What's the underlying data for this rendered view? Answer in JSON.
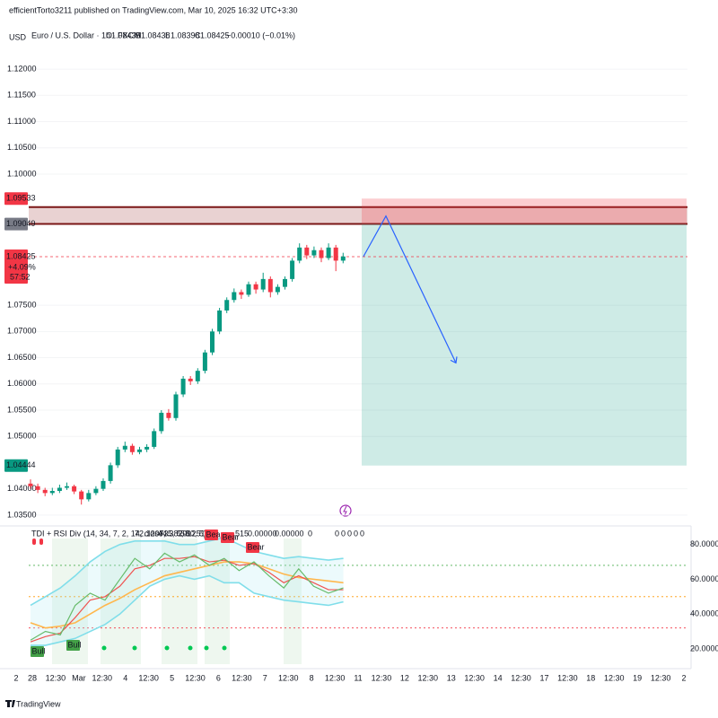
{
  "header": {
    "attribution": "efficientTorto3211 published on TradingView.com, Mar 10, 2025 16:32 UTC+3:30",
    "currency": "USD",
    "symbol": "Euro / U.S. Dollar · 1h · FXCM",
    "ohlc": [
      {
        "label": "O",
        "value": "1.08435"
      },
      {
        "label": "H",
        "value": "1.08438"
      },
      {
        "label": "L",
        "value": "1.08398"
      },
      {
        "label": "C",
        "value": "1.08425"
      }
    ],
    "change": "−0.00010 (−0.01%)"
  },
  "chart_data": {
    "type": "candlestick",
    "colors": {
      "up": "#089981",
      "down": "#f23645"
    },
    "candles": [
      [
        1.041,
        1.0418,
        1.04,
        1.0405
      ],
      [
        1.0405,
        1.041,
        1.0392,
        1.0398
      ],
      [
        1.0398,
        1.0402,
        1.0386,
        1.0392
      ],
      [
        1.0392,
        1.0402,
        1.0388,
        1.0396
      ],
      [
        1.0396,
        1.0408,
        1.0392,
        1.0402
      ],
      [
        1.0402,
        1.0412,
        1.0398,
        1.0405
      ],
      [
        1.0405,
        1.0408,
        1.039,
        1.0395
      ],
      [
        1.0395,
        1.0398,
        1.037,
        1.038
      ],
      [
        1.038,
        1.0398,
        1.0376,
        1.0392
      ],
      [
        1.0392,
        1.0405,
        1.0388,
        1.04
      ],
      [
        1.04,
        1.042,
        1.0396,
        1.0415
      ],
      [
        1.0415,
        1.045,
        1.041,
        1.0445
      ],
      [
        1.0445,
        1.048,
        1.044,
        1.0475
      ],
      [
        1.0475,
        1.049,
        1.047,
        1.0482
      ],
      [
        1.0482,
        1.0486,
        1.0465,
        1.047
      ],
      [
        1.047,
        1.048,
        1.0466,
        1.0475
      ],
      [
        1.0475,
        1.0485,
        1.047,
        1.048
      ],
      [
        1.048,
        1.0515,
        1.0476,
        1.051
      ],
      [
        1.051,
        1.055,
        1.0505,
        1.0545
      ],
      [
        1.0545,
        1.0552,
        1.053,
        1.0535
      ],
      [
        1.0535,
        1.0585,
        1.053,
        1.058
      ],
      [
        1.058,
        1.0615,
        1.0575,
        1.061
      ],
      [
        1.061,
        1.0615,
        1.0598,
        1.0605
      ],
      [
        1.0605,
        1.063,
        1.06,
        1.0625
      ],
      [
        1.0625,
        1.0665,
        1.062,
        1.066
      ],
      [
        1.066,
        1.0705,
        1.0655,
        1.07
      ],
      [
        1.07,
        1.0745,
        1.0695,
        1.074
      ],
      [
        1.074,
        1.0765,
        1.0735,
        1.076
      ],
      [
        1.076,
        1.0782,
        1.0755,
        1.0775
      ],
      [
        1.0775,
        1.078,
        1.0762,
        1.077
      ],
      [
        1.077,
        1.0795,
        1.0766,
        1.079
      ],
      [
        1.079,
        1.0795,
        1.0772,
        1.078
      ],
      [
        1.078,
        1.0812,
        1.0775,
        1.08
      ],
      [
        1.08,
        1.0805,
        1.0765,
        1.0775
      ],
      [
        1.0775,
        1.079,
        1.077,
        1.0785
      ],
      [
        1.0785,
        1.0805,
        1.078,
        1.08
      ],
      [
        1.08,
        1.084,
        1.0795,
        1.0835
      ],
      [
        1.0835,
        1.0868,
        1.083,
        1.086
      ],
      [
        1.086,
        1.0865,
        1.0838,
        1.0845
      ],
      [
        1.0845,
        1.0862,
        1.084,
        1.0855
      ],
      [
        1.0855,
        1.086,
        1.0832,
        1.084
      ],
      [
        1.084,
        1.0868,
        1.0836,
        1.086
      ],
      [
        1.086,
        1.0865,
        1.0815,
        1.0835
      ],
      [
        1.0835,
        1.085,
        1.083,
        1.0843
      ]
    ],
    "ylim": [
      1.0331,
      1.1272
    ],
    "yticks": [
      {
        "value": 1.12,
        "label": "1.12000"
      },
      {
        "value": 1.115,
        "label": "1.11500"
      },
      {
        "value": 1.11,
        "label": "1.11000"
      },
      {
        "value": 1.105,
        "label": "1.10500"
      },
      {
        "value": 1.1,
        "label": "1.10000"
      },
      {
        "value": 1.075,
        "label": "1.07500"
      },
      {
        "value": 1.07,
        "label": "1.07000"
      },
      {
        "value": 1.065,
        "label": "1.06500"
      },
      {
        "value": 1.06,
        "label": "1.06000"
      },
      {
        "value": 1.055,
        "label": "1.05500"
      },
      {
        "value": 1.05,
        "label": "1.05000"
      },
      {
        "value": 1.04,
        "label": "1.04000"
      },
      {
        "value": 1.035,
        "label": "1.03500"
      }
    ],
    "price_badges": [
      {
        "value": 1.09533,
        "label": "1.09533",
        "color": "#f23645"
      },
      {
        "value": 1.09049,
        "label": "1.09049",
        "color": "#787b86"
      },
      {
        "value": 1.04444,
        "label": "1.04444",
        "color": "#089981"
      }
    ],
    "current_price": {
      "value": 1.08425,
      "label": "1.08425",
      "change": "+4.09%",
      "countdown": "57:52",
      "color": "#f23645"
    },
    "resistance_zone": [
      1.0937,
      1.0905
    ],
    "target_box": {
      "top": 1.09533,
      "entry": 1.09049,
      "bottom": 1.04444
    },
    "projection": [
      1.0843,
      1.092,
      1.064
    ],
    "x_labels": [
      "2",
      "28",
      "12:30",
      "Mar",
      "12:30",
      "4",
      "12:30",
      "5",
      "12:30",
      "6",
      "12:30",
      "7",
      "12:30",
      "8",
      "12:30",
      "11",
      "12:30",
      "12",
      "12:30",
      "13",
      "12:30",
      "14",
      "12:30",
      "17",
      "12:30",
      "18",
      "12:30",
      "19",
      "12:30",
      "2"
    ],
    "indicator": {
      "title": "TDI + RSI Div (14, 34, 7, 2, 14, close, 5, 5, 60, 5)",
      "readouts": [
        {
          "text": "72.12073",
          "color": "#26a69a"
        },
        {
          "text": "44.38201",
          "color": "#4caf50"
        },
        {
          "text": "58.25132",
          "color": "#ff9800"
        },
        {
          "text": "515",
          "color": "#f23645"
        },
        {
          "text": "0.00000",
          "color": "#4caf50"
        },
        {
          "text": "0.00000",
          "color": "#f23645"
        },
        {
          "text": "0",
          "color": "#131722"
        },
        {
          "text": "0",
          "color": "#131722"
        },
        {
          "text": "0",
          "color": "#131722"
        },
        {
          "text": "0",
          "color": "#131722"
        },
        {
          "text": "0",
          "color": "#131722"
        },
        {
          "text": "0",
          "color": "#131722"
        }
      ],
      "ylim": [
        8.6,
        88.6
      ],
      "yticks": [
        {
          "value": 80,
          "label": "80.00000"
        },
        {
          "value": 60,
          "label": "60.00000"
        },
        {
          "value": 40,
          "label": "40.00000"
        },
        {
          "value": 20,
          "label": "20.00000"
        }
      ],
      "levels": [
        {
          "value": 68,
          "color": "#4caf50"
        },
        {
          "value": 50,
          "color": "#ff9800"
        },
        {
          "value": 32,
          "color": "#f23645"
        }
      ],
      "series": [
        {
          "color": "#80deea",
          "values": [
            45,
            50,
            55,
            62,
            70,
            76,
            80,
            82,
            82,
            82,
            80,
            80,
            82,
            84,
            80,
            76,
            74,
            72,
            73,
            72,
            71,
            72
          ]
        },
        {
          "color": "#80deea",
          "values": [
            22,
            22,
            24,
            26,
            30,
            34,
            40,
            48,
            56,
            60,
            62,
            60,
            62,
            58,
            58,
            52,
            50,
            48,
            47,
            46,
            45,
            47
          ]
        },
        {
          "color": "#ffb74d",
          "values": [
            35,
            32,
            33,
            35,
            40,
            45,
            49,
            54,
            58,
            62,
            64,
            66,
            68,
            70,
            70,
            69,
            66,
            63,
            61,
            60,
            59,
            58
          ]
        },
        {
          "color": "#ef5350",
          "values": [
            24,
            27,
            29,
            38,
            48,
            50,
            56,
            66,
            68,
            72,
            72,
            73,
            70,
            71,
            68,
            69,
            64,
            58,
            62,
            58,
            54,
            54
          ]
        },
        {
          "color": "#66bb6a",
          "values": [
            25,
            30,
            28,
            45,
            52,
            48,
            60,
            72,
            66,
            75,
            70,
            74,
            68,
            72,
            65,
            70,
            62,
            55,
            66,
            56,
            52,
            55
          ]
        }
      ],
      "signals": [
        {
          "label": "Bull",
          "color": "#43a047"
        },
        {
          "label": "Bull",
          "color": "#43a047"
        },
        {
          "label": "Bear",
          "color": "#f23645"
        },
        {
          "label": "Bear",
          "color": "#f23645"
        },
        {
          "label": "Bear",
          "color": "#f23645"
        }
      ]
    }
  },
  "footer": {
    "brand": "TradingView"
  }
}
